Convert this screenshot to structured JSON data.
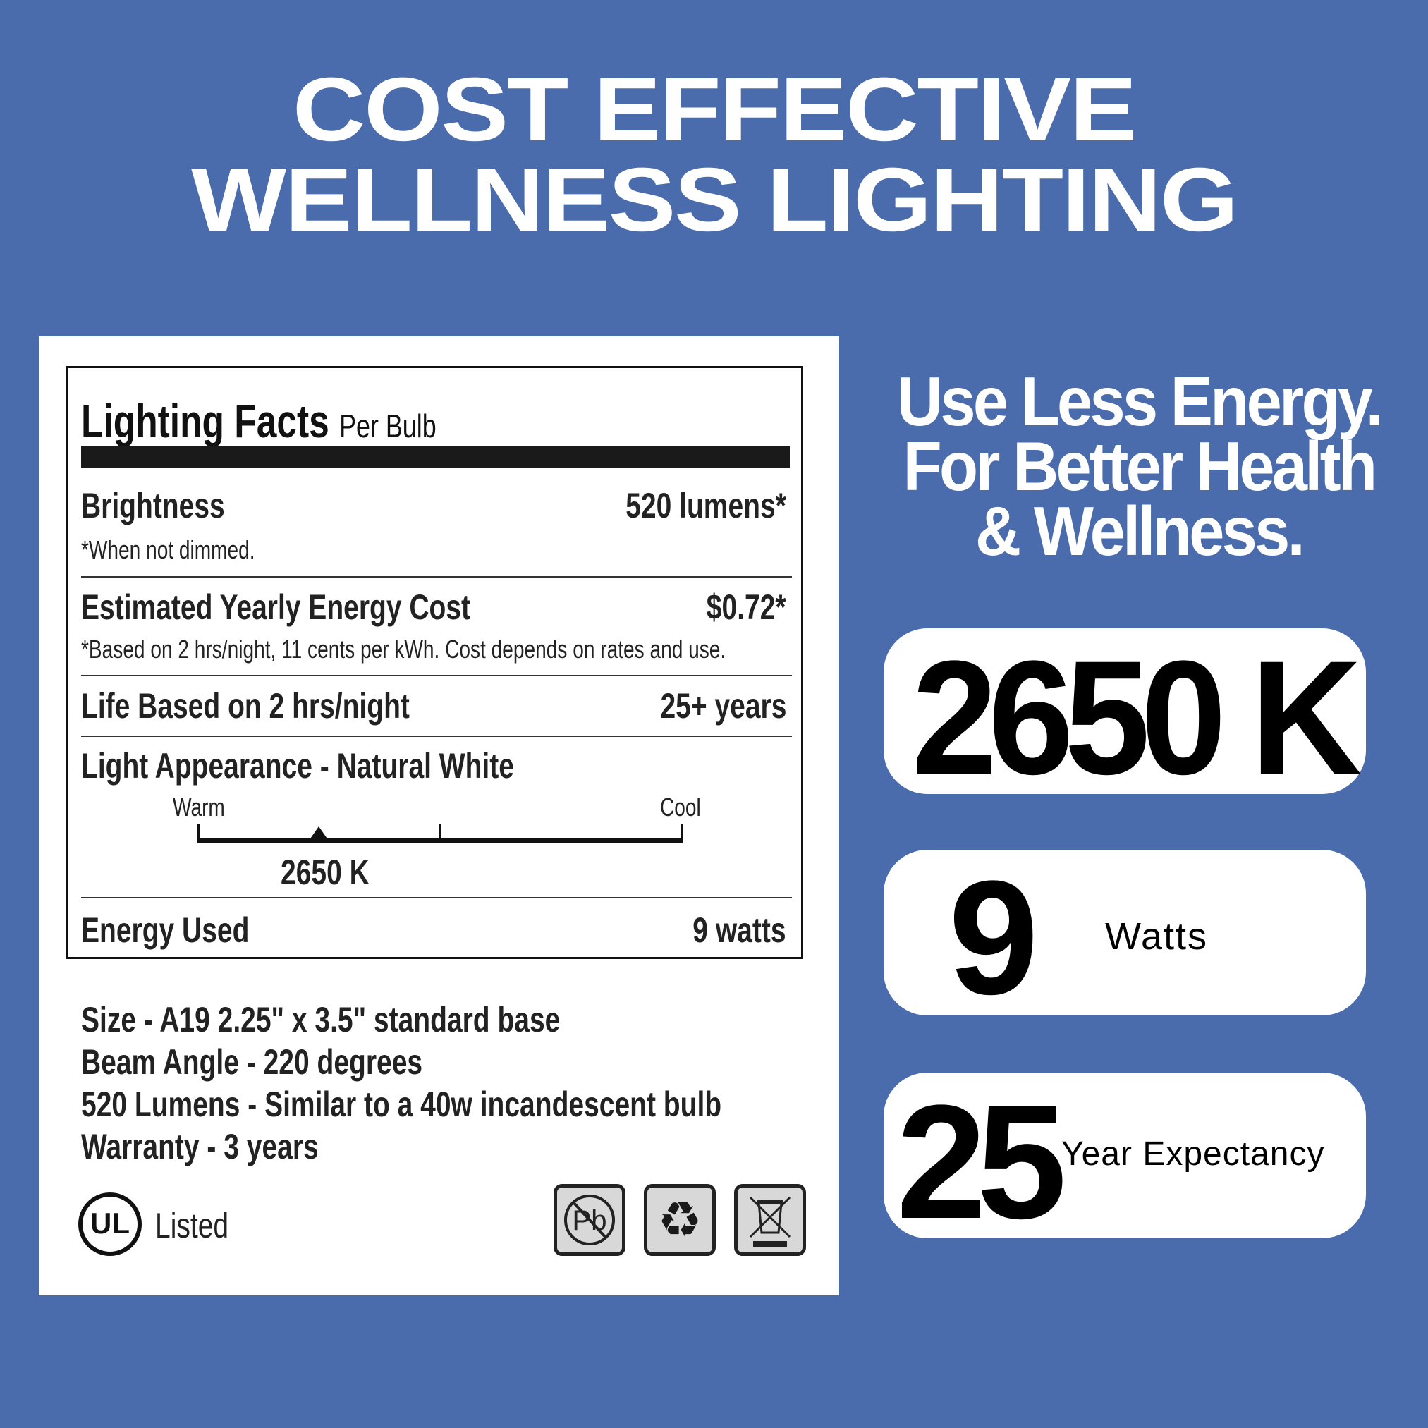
{
  "headline": {
    "line1": "COST EFFECTIVE",
    "line2": "WELLNESS LIGHTING"
  },
  "facts": {
    "title": "Lighting Facts",
    "subtitle": "Per Bulb",
    "brightness_label": "Brightness",
    "brightness_value": "520 lumens*",
    "brightness_note": "*When not dimmed.",
    "cost_label": "Estimated Yearly Energy Cost",
    "cost_value": "$0.72*",
    "cost_note": "*Based on 2 hrs/night, 11 cents per kWh. Cost depends on rates and use.",
    "life_label": "Life Based on 2 hrs/night",
    "life_value": "25+ years",
    "appearance_label": "Light Appearance - Natural White",
    "warm": "Warm",
    "cool": "Cool",
    "scale_value": "2650 K",
    "scale_position": 0.25,
    "energy_label": "Energy Used",
    "energy_value": "9 watts"
  },
  "specs": [
    "Size - A19 2.25\" x 3.5\" standard base",
    "Beam Angle - 220 degrees",
    "520 Lumens - Similar to a 40w incandescent bulb",
    "Warranty - 3 years"
  ],
  "ul": {
    "logo": "UL",
    "listed": "Listed"
  },
  "icons": [
    "lead-free-icon",
    "recycle-icon",
    "weee-bin-icon"
  ],
  "tagline": [
    "Use Less Energy.",
    "For Better Health",
    "& Wellness."
  ],
  "stats": [
    {
      "value": "2650 K",
      "label": ""
    },
    {
      "value": "9",
      "label": "Watts"
    },
    {
      "value": "25",
      "label": "Year Expectancy"
    }
  ],
  "colors": {
    "background": "#4a6cad",
    "panel": "#ffffff",
    "text": "#000000"
  }
}
